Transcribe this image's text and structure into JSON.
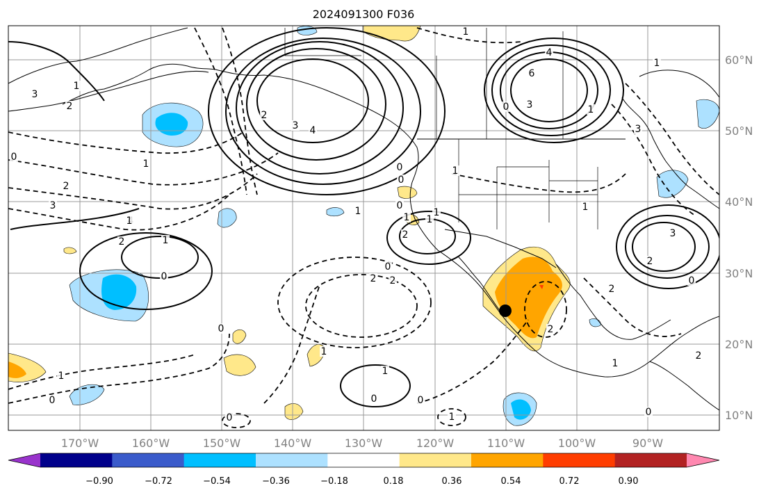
{
  "title": "2024091300 F036",
  "map": {
    "lon_labels": [
      "170°W",
      "160°W",
      "150°W",
      "140°W",
      "130°W",
      "120°W",
      "110°W",
      "100°W",
      "90°W"
    ],
    "lat_labels": [
      "60°N",
      "50°N",
      "40°N",
      "30°N",
      "20°N",
      "10°N"
    ]
  },
  "colorbar": {
    "labels": [
      "−0.90",
      "−0.72",
      "−0.54",
      "−0.36",
      "−0.18",
      "0.18",
      "0.36",
      "0.54",
      "0.72",
      "0.90"
    ],
    "colors": [
      "#9933cc",
      "#00008b",
      "#3a5bcb",
      "#00bfff",
      "#ade1ff",
      "#ffffff",
      "#ffe88a",
      "#ffa500",
      "#ff3d00",
      "#b22222",
      "#ff88b0"
    ]
  },
  "contour_labels": [
    "1",
    "3",
    "2",
    "1",
    "0",
    "1",
    "2",
    "3",
    "4",
    "2",
    "1",
    "0",
    "2",
    "3",
    "4",
    "4",
    "6",
    "3",
    "0",
    "1",
    "3",
    "2",
    "1",
    "0",
    "1",
    "2",
    "1",
    "0",
    "2",
    "0",
    "2",
    "1",
    "1",
    "0",
    "1",
    "2",
    "0",
    "1",
    "2",
    "3",
    "2",
    "1",
    "0",
    "1",
    "0",
    "1",
    "0",
    "0",
    "0",
    "1",
    "1",
    "0",
    "1"
  ],
  "shading_colors": {
    "light_blue": "#ade1ff",
    "blue": "#00bfff",
    "light_yellow": "#ffe88a",
    "orange": "#ffa500",
    "red": "#ff3d00"
  },
  "marker": {
    "name": "station-marker",
    "color": "#000000"
  }
}
